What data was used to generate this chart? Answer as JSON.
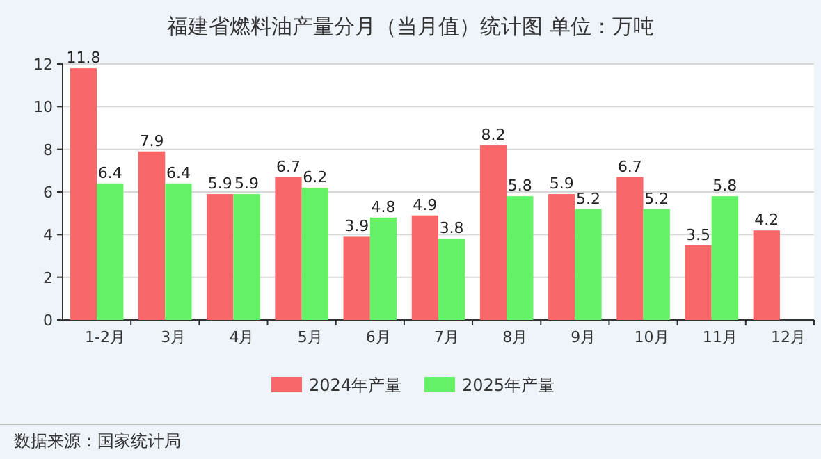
{
  "chart_data": {
    "type": "bar",
    "title": "福建省燃料油产量分月（当月值）统计图 单位：万吨",
    "categories": [
      "1-2月",
      "3月",
      "4月",
      "5月",
      "6月",
      "7月",
      "8月",
      "9月",
      "10月",
      "11月",
      "12月"
    ],
    "series": [
      {
        "name": "2024年产量",
        "color": "#f86868",
        "values": [
          11.8,
          7.9,
          5.9,
          6.7,
          3.9,
          4.9,
          8.2,
          5.9,
          6.7,
          3.5,
          4.2
        ]
      },
      {
        "name": "2025年产量",
        "color": "#66f266",
        "values": [
          6.4,
          6.4,
          5.9,
          6.2,
          4.8,
          3.8,
          5.8,
          5.2,
          5.2,
          5.8,
          null
        ]
      }
    ],
    "ylim": [
      0,
      12
    ],
    "yticks": [
      0,
      2,
      4,
      6,
      8,
      10,
      12
    ],
    "grid": "y",
    "legend": "bottom",
    "data_labels": true,
    "annotations": [
      "数据来源：国家统计局"
    ]
  }
}
